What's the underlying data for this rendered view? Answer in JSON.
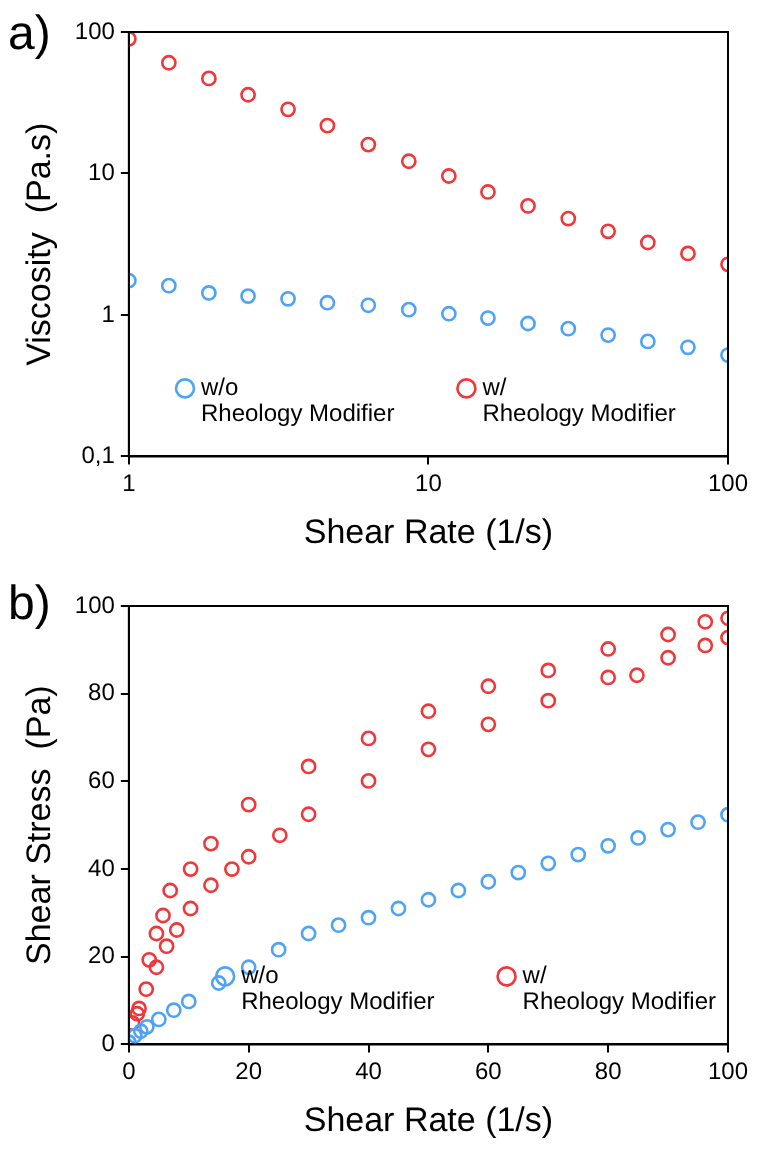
{
  "chart_data": [
    {
      "type": "scatter",
      "title": "a)",
      "xlabel": "Shear Rate (1/s)",
      "ylabel": "Viscosity  (Pa.s)",
      "log": "xy",
      "grid": false,
      "legend": "bottom",
      "marker": "circle",
      "x": [
        1,
        1.36,
        1.85,
        2.5,
        3.4,
        4.6,
        6.3,
        8.6,
        11.7,
        15.8,
        21.5,
        29.3,
        39.8,
        54,
        73.5,
        100
      ],
      "xlim": [
        1,
        100
      ],
      "xticks": [
        1,
        10,
        100
      ],
      "ylim": [
        0.1,
        100
      ],
      "yticks": [
        {
          "value": 0.1,
          "label": "0,1"
        },
        1,
        10,
        100
      ],
      "series": [
        {
          "name": "w/o\nRheology Modifier",
          "color": "#4fa3f7",
          "values": [
            1.75,
            1.61,
            1.43,
            1.36,
            1.3,
            1.22,
            1.17,
            1.09,
            1.02,
            0.95,
            0.87,
            0.8,
            0.72,
            0.65,
            0.59,
            0.52
          ]
        },
        {
          "name": "w/\nRheology Modifier",
          "color": "#f0373a",
          "values": [
            89.5,
            60.6,
            47,
            36,
            28.4,
            21.8,
            16,
            12.2,
            9.6,
            7.4,
            5.9,
            4.8,
            3.9,
            3.25,
            2.72,
            2.28
          ]
        }
      ]
    },
    {
      "type": "scatter",
      "title": "b)",
      "xlabel": "Shear Rate (1/s)",
      "ylabel": "Shear Stress  (Pa)",
      "grid": false,
      "legend": "bottom right",
      "marker": "circle",
      "xlim": [
        0,
        100
      ],
      "xticks": [
        0,
        20,
        40,
        60,
        80,
        100
      ],
      "ylim": [
        0,
        100
      ],
      "yticks": [
        0,
        20,
        40,
        60,
        80,
        100
      ],
      "series": [
        {
          "name": "w/o\nRheology Modifier",
          "color": "#4fa3f7",
          "x": [
            0,
            1,
            2,
            3,
            5,
            7.5,
            10,
            15,
            20,
            25,
            30,
            35,
            40,
            45,
            50,
            55,
            60,
            65,
            70,
            75,
            80,
            85,
            90,
            95,
            100
          ],
          "values": [
            0.5,
            2,
            3,
            4,
            5.7,
            7.8,
            9.8,
            14,
            17.6,
            21.6,
            25.3,
            27.2,
            28.9,
            31,
            33,
            35.1,
            37.1,
            39.2,
            41.3,
            43.3,
            45.3,
            47.1,
            49,
            50.7,
            52.4
          ]
        },
        {
          "name": "w/\nRheology Modifier",
          "color": "#f0373a",
          "x": [
            1.4,
            2.9,
            4.6,
            6.3,
            8,
            10.3,
            13.7,
            17.2,
            20,
            25.2,
            30,
            40,
            50,
            60,
            70,
            80,
            84.8,
            90,
            96.2,
            100,
            100,
            96.2,
            90,
            80,
            70,
            60,
            50,
            40,
            30,
            20,
            13.7,
            10.3,
            6.9,
            5.7,
            4.6,
            3.4,
            1.7,
            0.6
          ],
          "values": [
            7,
            12.6,
            17.6,
            22.4,
            26.1,
            31,
            36.3,
            40,
            42.8,
            47.7,
            52.5,
            60.1,
            67.3,
            73,
            78.4,
            83.7,
            84.2,
            88.2,
            91,
            92.8,
            97.2,
            96.4,
            93.5,
            90.2,
            85.3,
            81.7,
            76,
            69.8,
            63.4,
            54.7,
            45.8,
            40,
            35.1,
            29.4,
            25.3,
            19.3,
            8.2,
            4.9
          ]
        }
      ]
    }
  ]
}
